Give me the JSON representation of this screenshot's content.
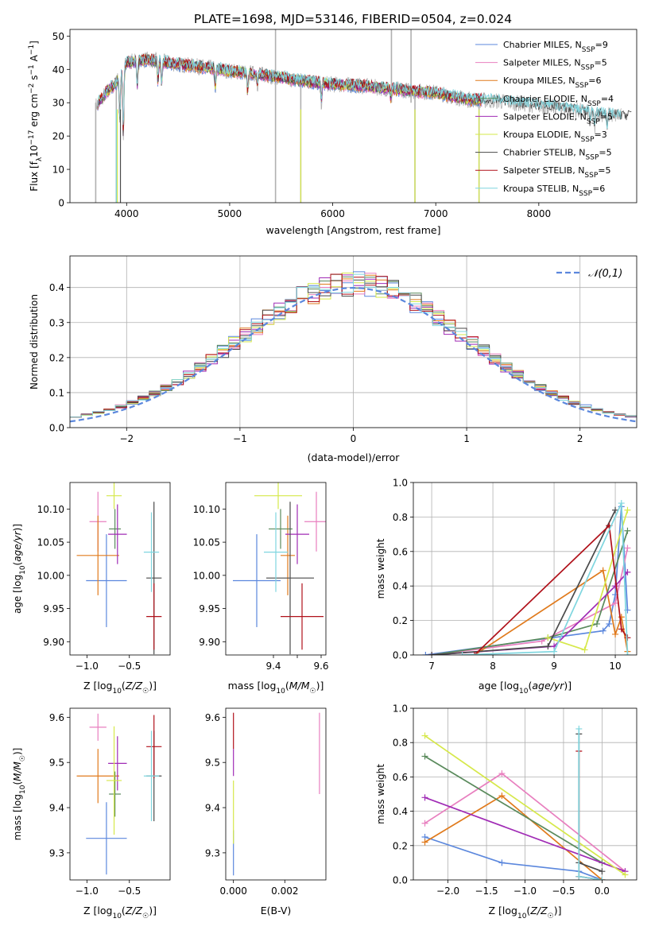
{
  "figure_title": "PLATE=1698, MJD=53146, FIBERID=0504, z=0.024",
  "models": [
    {
      "name": "Chabrier MILES",
      "nssp": "9",
      "color": "#5b87dd"
    },
    {
      "name": "Salpeter MILES",
      "nssp": "5",
      "color": "#e87fbf"
    },
    {
      "name": "Kroupa MILES",
      "nssp": "6",
      "color": "#e07a1c"
    },
    {
      "name": "Chabrier ELODIE",
      "nssp": "4",
      "color": "#5a8a5c"
    },
    {
      "name": "Salpeter ELODIE",
      "nssp": "5",
      "color": "#a02bb5"
    },
    {
      "name": "Kroupa ELODIE",
      "nssp": "3",
      "color": "#d6e84a"
    },
    {
      "name": "Chabrier STELIB",
      "nssp": "5",
      "color": "#4a4a4a"
    },
    {
      "name": "Salpeter STELIB",
      "nssp": "5",
      "color": "#b0111a"
    },
    {
      "name": "Kroupa STELIB",
      "nssp": "6",
      "color": "#7fd6df"
    }
  ],
  "chart_data": [
    {
      "id": "spectrum",
      "type": "line",
      "xlabel": "wavelength [Angstrom, rest frame]",
      "ylabel": "Flux [f",
      "ylabel_parts": [
        "Flux [f",
        "λ",
        "10",
        "−17",
        " erg cm",
        "−2",
        " s",
        "−1",
        " A",
        "−1",
        "]"
      ],
      "xlim": [
        3450,
        8950
      ],
      "ylim": [
        0,
        52
      ],
      "xticks": [
        4000,
        5000,
        6000,
        7000,
        8000
      ],
      "yticks": [
        0,
        10,
        20,
        30,
        40,
        50
      ],
      "data_color": "#b0b0b0",
      "continuum": {
        "x": [
          3700,
          3800,
          3900,
          4000,
          4200,
          4500,
          4800,
          5000,
          5300,
          5600,
          6000,
          6300,
          6600,
          7000,
          7300,
          7600,
          7900,
          8200,
          8500,
          8800
        ],
        "y": [
          29,
          33,
          36,
          42,
          43,
          41.5,
          40.5,
          39.5,
          38.5,
          37,
          35.5,
          35,
          34,
          33,
          31,
          30.5,
          29.5,
          28.5,
          27,
          26
        ]
      },
      "absorption": [
        {
          "x": 3934,
          "depth": 14
        },
        {
          "x": 3968,
          "depth": 22
        },
        {
          "x": 4102,
          "depth": 8
        },
        {
          "x": 4304,
          "depth": 7
        },
        {
          "x": 4340,
          "depth": 7
        },
        {
          "x": 4861,
          "depth": 6
        },
        {
          "x": 5175,
          "depth": 7
        },
        {
          "x": 5270,
          "depth": 3
        },
        {
          "x": 5890,
          "depth": 6
        },
        {
          "x": 6563,
          "depth": 3
        },
        {
          "x": 8498,
          "depth": 4
        },
        {
          "x": 8542,
          "depth": 5
        },
        {
          "x": 8662,
          "depth": 4
        }
      ],
      "spikes": [
        {
          "x": 3700,
          "lo": 0,
          "hi": 30
        },
        {
          "x": 3900,
          "lo": 0,
          "hi": 36
        },
        {
          "x": 5445,
          "lo": 0,
          "hi": 52
        },
        {
          "x": 5690,
          "lo": 0,
          "hi": 36
        },
        {
          "x": 6570,
          "lo": 30,
          "hi": 52
        },
        {
          "x": 6760,
          "lo": 30,
          "hi": 52
        },
        {
          "x": 6798,
          "lo": 0,
          "hi": 33
        },
        {
          "x": 7420,
          "lo": 0,
          "hi": 31
        }
      ],
      "legend_position": "upper-right"
    },
    {
      "id": "residuals",
      "type": "histogram",
      "xlabel": "(data-model)/error",
      "ylabel": "Normed distribution",
      "xlim": [
        -2.5,
        2.5
      ],
      "ylim": [
        0,
        0.49
      ],
      "xticks": [
        -2,
        -1,
        0,
        1,
        2
      ],
      "yticks": [
        0.0,
        0.1,
        0.2,
        0.3,
        0.4
      ],
      "bin_width": 0.1,
      "bin_start": -2.5,
      "gaussian_label": "𝒩(0,1)",
      "gaussian_color": "#5b87dd",
      "grid": true,
      "legend_position": "upper-right"
    },
    {
      "id": "age-vs-Z",
      "type": "errorbar",
      "xlabel": "Z [log10(Z/Z☉)]",
      "ylabel": "age  [log10(age/yr)]",
      "xlim": [
        -1.2,
        -0.02
      ],
      "ylim": [
        9.88,
        10.14
      ],
      "xticks": [
        -1.0,
        -0.5
      ],
      "yticks": [
        9.9,
        9.95,
        10.0,
        10.05,
        10.1
      ],
      "points": [
        {
          "model": 0,
          "x": -0.77,
          "xerr": 0.24,
          "y": 9.992,
          "yerr": 0.07
        },
        {
          "model": 1,
          "x": -0.87,
          "xerr": 0.1,
          "y": 10.081,
          "yerr": 0.045
        },
        {
          "model": 2,
          "x": -0.87,
          "xerr": 0.25,
          "y": 10.03,
          "yerr": 0.06
        },
        {
          "model": 3,
          "x": -0.67,
          "xerr": 0.07,
          "y": 10.07,
          "yerr": 0.03
        },
        {
          "model": 4,
          "x": -0.64,
          "xerr": 0.11,
          "y": 10.062,
          "yerr": 0.045
        },
        {
          "model": 5,
          "x": -0.68,
          "xerr": 0.09,
          "y": 10.12,
          "yerr": 0.02
        },
        {
          "model": 6,
          "x": -0.21,
          "xerr": 0.09,
          "y": 9.996,
          "yerr": 0.115
        },
        {
          "model": 7,
          "x": -0.21,
          "xerr": 0.09,
          "y": 9.938,
          "yerr": 0.05
        },
        {
          "model": 8,
          "x": -0.24,
          "xerr": 0.09,
          "y": 10.035,
          "yerr": 0.06
        }
      ]
    },
    {
      "id": "age-vs-mass",
      "type": "errorbar",
      "xlabel": "mass [log10(M/M☉)]",
      "ylabel": "",
      "xlim": [
        9.2,
        9.62
      ],
      "ylim": [
        9.88,
        10.14
      ],
      "xticks": [
        9.4,
        9.5,
        9.6
      ],
      "xtick_labels": [
        "9.4",
        "",
        "9.6"
      ],
      "yticks": [
        9.9,
        9.95,
        10.0,
        10.05,
        10.1
      ],
      "points": [
        {
          "model": 0,
          "x": 9.33,
          "xerr": 0.1,
          "y": 9.992,
          "yerr": 0.07
        },
        {
          "model": 1,
          "x": 9.58,
          "xerr": 0.05,
          "y": 10.081,
          "yerr": 0.045
        },
        {
          "model": 2,
          "x": 9.46,
          "xerr": 0.03,
          "y": 10.03,
          "yerr": 0.06
        },
        {
          "model": 3,
          "x": 9.43,
          "xerr": 0.05,
          "y": 10.07,
          "yerr": 0.03
        },
        {
          "model": 4,
          "x": 9.5,
          "xerr": 0.05,
          "y": 10.062,
          "yerr": 0.045
        },
        {
          "model": 5,
          "x": 9.42,
          "xerr": 0.1,
          "y": 10.12,
          "yerr": 0.02
        },
        {
          "model": 6,
          "x": 9.47,
          "xerr": 0.1,
          "y": 9.996,
          "yerr": 0.115
        },
        {
          "model": 7,
          "x": 9.52,
          "xerr": 0.09,
          "y": 9.938,
          "yerr": 0.05
        },
        {
          "model": 8,
          "x": 9.41,
          "xerr": 0.05,
          "y": 10.035,
          "yerr": 0.06
        }
      ]
    },
    {
      "id": "weight-vs-age",
      "type": "line",
      "xlabel": "age  [log10(age/yr)]",
      "ylabel": "mass weight",
      "xlim": [
        6.7,
        10.35
      ],
      "ylim": [
        0,
        1.0
      ],
      "xticks": [
        7,
        8,
        9,
        10
      ],
      "yticks": [
        0.0,
        0.2,
        0.4,
        0.6,
        0.8,
        1.0
      ],
      "grid": true,
      "series": [
        {
          "model": 0,
          "x": [
            6.9,
            9.8,
            9.9,
            10.0,
            10.1,
            10.2
          ],
          "y": [
            0.0,
            0.14,
            0.18,
            0.35,
            0.86,
            0.26
          ]
        },
        {
          "model": 1,
          "x": [
            7.0,
            8.8,
            10.0,
            10.2
          ],
          "y": [
            0.0,
            0.08,
            0.3,
            0.62
          ]
        },
        {
          "model": 2,
          "x": [
            7.7,
            9.8,
            10.0,
            10.1,
            10.2
          ],
          "y": [
            0.0,
            0.49,
            0.12,
            0.22,
            0.02
          ]
        },
        {
          "model": 3,
          "x": [
            7.0,
            8.9,
            9.7,
            10.2
          ],
          "y": [
            0.0,
            0.1,
            0.18,
            0.72
          ]
        },
        {
          "model": 4,
          "x": [
            7.0,
            9.0,
            10.0,
            10.2
          ],
          "y": [
            0.0,
            0.05,
            0.4,
            0.48
          ]
        },
        {
          "model": 5,
          "x": [
            8.9,
            9.5,
            10.2
          ],
          "y": [
            0.1,
            0.03,
            0.84
          ]
        },
        {
          "model": 6,
          "x": [
            7.0,
            8.9,
            10.0
          ],
          "y": [
            0.0,
            0.05,
            0.84
          ]
        },
        {
          "model": 7,
          "x": [
            7.7,
            9.9,
            10.1,
            10.2
          ],
          "y": [
            0.0,
            0.75,
            0.15,
            0.1
          ]
        },
        {
          "model": 8,
          "x": [
            7.5,
            9.0,
            10.1,
            10.2
          ],
          "y": [
            0.0,
            0.02,
            0.88,
            0.0
          ]
        }
      ]
    },
    {
      "id": "mass-vs-Z",
      "type": "errorbar",
      "xlabel": "Z [log10(Z/Z☉)]",
      "ylabel": "mass [log10(M/M☉)]",
      "xlim": [
        -1.2,
        -0.02
      ],
      "ylim": [
        9.24,
        9.62
      ],
      "xticks": [
        -1.0,
        -0.5
      ],
      "yticks": [
        9.3,
        9.4,
        9.5,
        9.6
      ],
      "points": [
        {
          "model": 0,
          "x": -0.77,
          "xerr": 0.24,
          "y": 9.332,
          "yerr": 0.08
        },
        {
          "model": 1,
          "x": -0.87,
          "xerr": 0.1,
          "y": 9.578,
          "yerr": 0.03
        },
        {
          "model": 2,
          "x": -0.87,
          "xerr": 0.25,
          "y": 9.47,
          "yerr": 0.06
        },
        {
          "model": 3,
          "x": -0.67,
          "xerr": 0.07,
          "y": 9.43,
          "yerr": 0.05
        },
        {
          "model": 4,
          "x": -0.64,
          "xerr": 0.11,
          "y": 9.498,
          "yerr": 0.06
        },
        {
          "model": 5,
          "x": -0.68,
          "xerr": 0.09,
          "y": 9.46,
          "yerr": 0.12
        },
        {
          "model": 6,
          "x": -0.21,
          "xerr": 0.09,
          "y": 9.47,
          "yerr": 0.1
        },
        {
          "model": 7,
          "x": -0.21,
          "xerr": 0.09,
          "y": 9.535,
          "yerr": 0.07
        },
        {
          "model": 8,
          "x": -0.24,
          "xerr": 0.09,
          "y": 9.47,
          "yerr": 0.1
        }
      ]
    },
    {
      "id": "mass-vs-EBV",
      "type": "errorbar",
      "xlabel": "E(B-V)",
      "ylabel": "",
      "xlim": [
        -0.0003,
        0.0036
      ],
      "ylim": [
        9.24,
        9.62
      ],
      "xticks": [
        0.0,
        0.002
      ],
      "xtick_labels": [
        "0.000",
        "0.002"
      ],
      "yticks": [
        9.3,
        9.4,
        9.5,
        9.6
      ],
      "points": [
        {
          "model": 0,
          "x": 0.0,
          "xerr": 0.0,
          "y": 9.3,
          "yerr": 0.05
        },
        {
          "model": 1,
          "x": 0.00335,
          "xerr": 0.0,
          "y": 9.52,
          "yerr": 0.09
        },
        {
          "model": 5,
          "x": 0.0,
          "xerr": 0.0,
          "y": 9.39,
          "yerr": 0.07
        },
        {
          "model": 4,
          "x": 0.0,
          "xerr": 0.0,
          "y": 9.5,
          "yerr": 0.03
        },
        {
          "model": 7,
          "x": 0.0,
          "xerr": 0.0,
          "y": 9.57,
          "yerr": 0.04
        }
      ]
    },
    {
      "id": "weight-vs-Z",
      "type": "line",
      "xlabel": "Z [log10(Z/Z☉)]",
      "ylabel": "mass weight",
      "xlim": [
        -2.45,
        0.45
      ],
      "ylim": [
        0,
        1.0
      ],
      "xticks": [
        -2.0,
        -1.5,
        -1.0,
        -0.5,
        0.0
      ],
      "yticks": [
        0.0,
        0.2,
        0.4,
        0.6,
        0.8,
        1.0
      ],
      "grid": true,
      "series": [
        {
          "model": 0,
          "x": [
            -2.3,
            -1.3,
            -0.3,
            0.0
          ],
          "y": [
            0.25,
            0.1,
            0.05,
            0.0
          ]
        },
        {
          "model": 1,
          "x": [
            -2.3,
            -1.3,
            0.3
          ],
          "y": [
            0.33,
            0.62,
            0.05
          ]
        },
        {
          "model": 2,
          "x": [
            -2.3,
            -1.3,
            0.0
          ],
          "y": [
            0.22,
            0.49,
            0.0
          ]
        },
        {
          "model": 3,
          "x": [
            -2.3,
            0.0
          ],
          "y": [
            0.72,
            0.1
          ]
        },
        {
          "model": 4,
          "x": [
            -2.3,
            0.3
          ],
          "y": [
            0.48,
            0.05
          ]
        },
        {
          "model": 5,
          "x": [
            -2.3,
            0.3
          ],
          "y": [
            0.84,
            0.03
          ]
        },
        {
          "model": 6,
          "x": [
            -0.3,
            -0.3,
            0.0
          ],
          "y": [
            0.85,
            0.1,
            0.05
          ]
        },
        {
          "model": 7,
          "x": [
            -0.3,
            -0.3,
            0.0
          ],
          "y": [
            0.75,
            0.02,
            0.0
          ]
        },
        {
          "model": 8,
          "x": [
            -0.3,
            -0.3,
            0.0
          ],
          "y": [
            0.88,
            0.02,
            0.0
          ]
        }
      ]
    }
  ]
}
